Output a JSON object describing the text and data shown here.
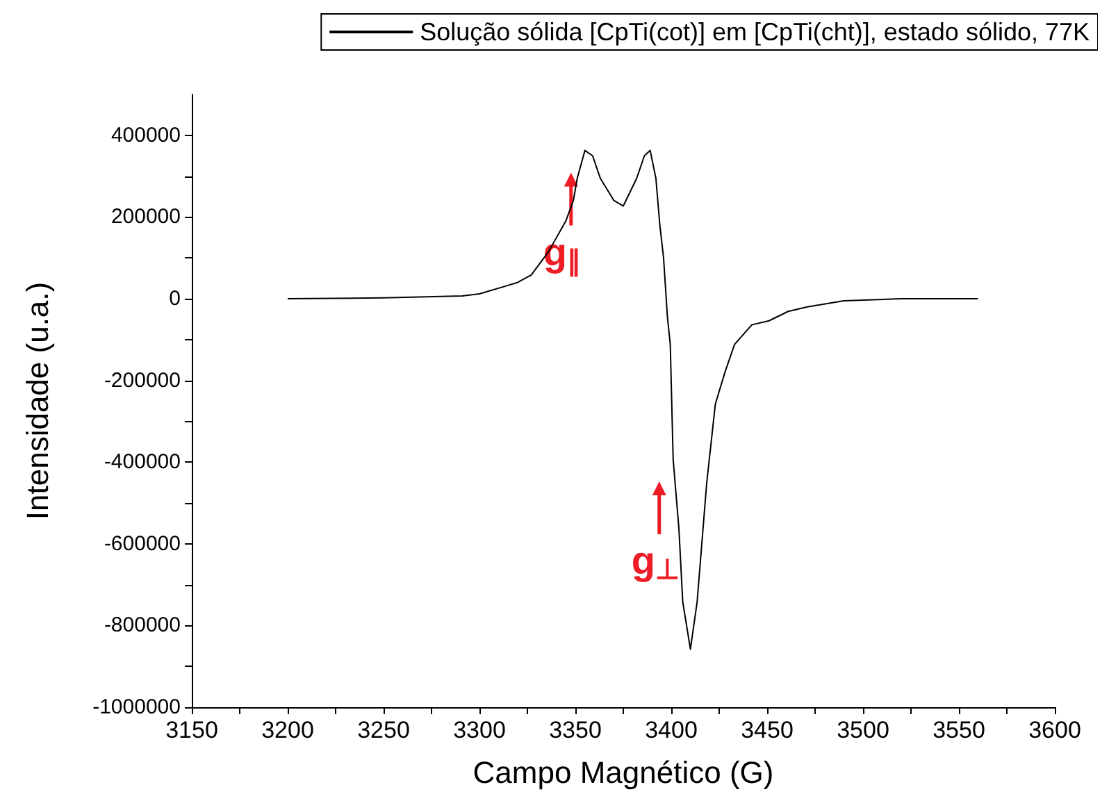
{
  "chart_data": {
    "type": "line",
    "xlabel": "Campo Magnético (G)",
    "ylabel": "Intensidade (u.a.)",
    "x": [
      3200,
      3250,
      3291,
      3300,
      3313,
      3320,
      3327,
      3336,
      3345,
      3349,
      3351,
      3355,
      3359,
      3363,
      3370,
      3375,
      3382,
      3386,
      3389,
      3392,
      3394,
      3396,
      3398,
      3399.5,
      3401,
      3404,
      3406,
      3410,
      3413.5,
      3418.5,
      3423,
      3428,
      3433,
      3442,
      3451,
      3461,
      3471,
      3490,
      3520,
      3560
    ],
    "series": [
      {
        "name": "Solução sólida [CpTi(cot)] em [CpTi(cht)], estado sólido, 77K",
        "color": "#000000",
        "values": [
          0,
          2000,
          7000,
          12000,
          30000,
          40000,
          58000,
          115000,
          190000,
          241000,
          295000,
          363000,
          350000,
          295000,
          241000,
          227000,
          295000,
          350000,
          363000,
          295000,
          183000,
          100000,
          -44000,
          -112000,
          -393000,
          -563000,
          -742000,
          -858000,
          -742000,
          -451000,
          -258000,
          -180000,
          -112000,
          -64000,
          -54000,
          -31000,
          -20000,
          -5000,
          0,
          0
        ]
      }
    ],
    "xlim": [
      3150,
      3600
    ],
    "xticks": [
      3150,
      3200,
      3250,
      3300,
      3350,
      3400,
      3450,
      3500,
      3550,
      3600
    ],
    "ylim": [
      -1000000,
      500000
    ],
    "yticks": [
      -1000000,
      -800000,
      -600000,
      -400000,
      -200000,
      0,
      200000,
      400000
    ],
    "legend": "top right",
    "grid": false,
    "annotations": [
      {
        "text": "g$_{∥}$",
        "x": 3355,
        "y": 363000
      },
      {
        "text": "g$_{⊥}$",
        "x": 3401,
        "y": -393000
      }
    ]
  }
}
